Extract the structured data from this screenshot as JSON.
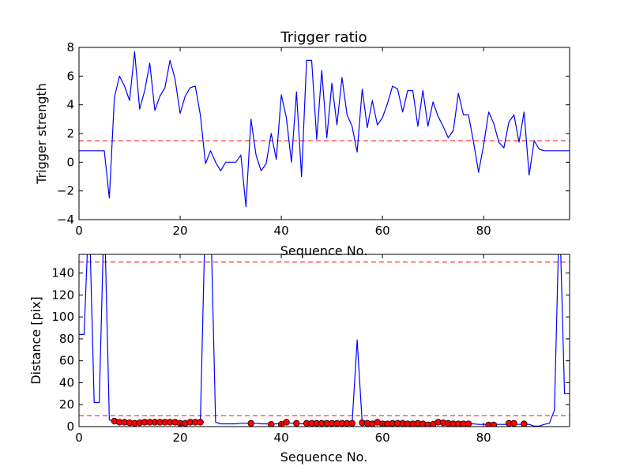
{
  "chart_data": [
    {
      "type": "line",
      "title": "Trigger ratio",
      "xlabel": "Sequence No.",
      "ylabel": "Trigger strength",
      "xlim": [
        0,
        97
      ],
      "ylim": [
        -4,
        8
      ],
      "xticks": [
        0,
        20,
        40,
        60,
        80
      ],
      "yticks": [
        -4,
        -2,
        0,
        2,
        4,
        6,
        8
      ],
      "xtick_labels": [
        "0",
        "20",
        "40",
        "60",
        "80"
      ],
      "ytick_labels": [
        "−4",
        "−2",
        "0",
        "2",
        "4",
        "6",
        "8"
      ],
      "grid": false,
      "threshold": {
        "value": 1.5,
        "color": "#ff0000",
        "style": "dashed"
      },
      "series": [
        {
          "color": "#0000ff",
          "x": [
            0,
            1,
            2,
            3,
            4,
            5,
            6,
            7,
            8,
            9,
            10,
            11,
            12,
            13,
            14,
            15,
            16,
            17,
            18,
            19,
            20,
            21,
            22,
            23,
            24,
            25,
            26,
            27,
            28,
            29,
            30,
            31,
            32,
            33,
            34,
            35,
            36,
            37,
            38,
            39,
            40,
            41,
            42,
            43,
            44,
            45,
            46,
            47,
            48,
            49,
            50,
            51,
            52,
            53,
            54,
            55,
            56,
            57,
            58,
            59,
            60,
            61,
            62,
            63,
            64,
            65,
            66,
            67,
            68,
            69,
            70,
            71,
            72,
            73,
            74,
            75,
            76,
            77,
            78,
            79,
            80,
            81,
            82,
            83,
            84,
            85,
            86,
            87,
            88,
            89,
            90,
            91,
            92,
            93,
            94,
            95,
            96,
            97
          ],
          "y": [
            0.8,
            0.8,
            0.8,
            0.8,
            0.8,
            0.8,
            -2.5,
            4.5,
            6.0,
            5.3,
            4.3,
            7.7,
            3.7,
            5.0,
            6.9,
            3.6,
            4.6,
            5.2,
            7.1,
            5.8,
            3.4,
            4.6,
            5.2,
            5.3,
            3.3,
            -0.1,
            0.8,
            0.0,
            -0.6,
            0.0,
            0.0,
            0.0,
            0.5,
            -3.1,
            3.0,
            0.5,
            -0.6,
            -0.1,
            2.0,
            0.2,
            4.7,
            3.1,
            0.0,
            4.9,
            -1.0,
            7.1,
            7.1,
            1.6,
            6.4,
            1.7,
            5.5,
            2.6,
            5.9,
            3.3,
            2.5,
            0.7,
            5.1,
            2.4,
            4.3,
            2.6,
            3.1,
            4.1,
            5.3,
            5.1,
            3.5,
            5.0,
            5.0,
            2.5,
            5.0,
            2.5,
            4.2,
            3.2,
            2.5,
            1.7,
            2.2,
            4.8,
            3.3,
            3.3,
            1.4,
            -0.7,
            1.2,
            3.5,
            2.7,
            1.4,
            1.0,
            2.8,
            3.3,
            1.4,
            3.5,
            -0.9,
            1.5,
            0.9,
            0.8,
            0.8,
            0.8,
            0.8,
            0.8,
            0.8
          ]
        }
      ]
    },
    {
      "type": "line",
      "title": "",
      "xlabel": "Sequence No.",
      "ylabel": "Distance [pix]",
      "xlim": [
        0,
        97
      ],
      "ylim": [
        0,
        157
      ],
      "xticks": [
        0,
        20,
        40,
        60,
        80
      ],
      "yticks": [
        0,
        20,
        40,
        60,
        80,
        100,
        120,
        140
      ],
      "xtick_labels": [
        "0",
        "20",
        "40",
        "60",
        "80"
      ],
      "ytick_labels": [
        "0",
        "20",
        "40",
        "60",
        "80",
        "100",
        "120",
        "140"
      ],
      "grid": false,
      "thresholds": [
        {
          "value": 150,
          "color": "#ff0000",
          "style": "dashed"
        },
        {
          "value": 10,
          "color": "#ff0000",
          "style": "dashed"
        }
      ],
      "series": [
        {
          "color": "#0000ff",
          "x": [
            0,
            1,
            2,
            3,
            4,
            5,
            6,
            7,
            8,
            9,
            10,
            11,
            12,
            13,
            14,
            15,
            16,
            17,
            18,
            19,
            20,
            21,
            22,
            23,
            24,
            25,
            26,
            27,
            28,
            29,
            30,
            31,
            32,
            33,
            34,
            35,
            36,
            37,
            38,
            39,
            40,
            41,
            42,
            43,
            44,
            45,
            46,
            47,
            48,
            49,
            50,
            51,
            52,
            53,
            54,
            55,
            56,
            57,
            58,
            59,
            60,
            61,
            62,
            63,
            64,
            65,
            66,
            67,
            68,
            69,
            70,
            71,
            72,
            73,
            74,
            75,
            76,
            77,
            78,
            79,
            80,
            81,
            82,
            83,
            84,
            85,
            86,
            87,
            88,
            89,
            90,
            91,
            92,
            93,
            94,
            95,
            96,
            97
          ],
          "y": [
            84,
            84,
            200,
            22,
            22,
            200,
            6,
            5,
            4.5,
            4,
            4,
            3,
            3.5,
            4,
            4,
            4,
            4,
            4,
            4,
            4,
            4,
            3,
            3,
            3.5,
            4,
            200,
            200,
            4,
            2.5,
            2.5,
            2.5,
            2.5,
            3,
            3,
            3,
            3,
            2.5,
            2.5,
            2,
            2.5,
            3,
            3.5,
            3,
            3,
            2.5,
            3,
            3,
            3,
            3,
            3,
            3,
            3,
            3,
            3,
            3,
            79,
            3,
            3,
            3.5,
            3,
            3,
            3,
            3,
            3,
            3,
            3,
            3,
            3,
            2.5,
            2.5,
            2,
            2.5,
            2.5,
            2.5,
            2.5,
            2.5,
            2.5,
            2.5,
            2.5,
            2,
            2,
            2,
            2,
            2,
            2,
            2,
            2,
            2,
            2,
            2,
            0.5,
            0.5,
            2,
            3,
            15,
            200,
            30,
            30
          ]
        }
      ],
      "markers": {
        "color": "#ff0000",
        "x": [
          7,
          8,
          9,
          10,
          11,
          12,
          13,
          14,
          15,
          16,
          17,
          18,
          19,
          20,
          21,
          22,
          23,
          24,
          34,
          38,
          40,
          41,
          43,
          45,
          46,
          47,
          48,
          49,
          50,
          51,
          52,
          53,
          54,
          56,
          57,
          58,
          59,
          60,
          61,
          62,
          63,
          64,
          65,
          66,
          67,
          68,
          69,
          70,
          71,
          72,
          73,
          74,
          75,
          76,
          77,
          81,
          82,
          85,
          86,
          88
        ],
        "y": [
          5,
          4,
          4,
          3.5,
          3,
          3.5,
          4,
          4,
          4,
          4,
          4,
          4,
          4,
          3,
          3,
          4,
          4,
          4,
          3,
          2,
          2,
          4,
          3,
          3,
          3,
          3,
          3,
          3,
          3,
          3,
          3,
          3,
          3,
          3.5,
          3,
          2.5,
          4,
          2.5,
          2.5,
          3,
          3,
          3,
          2.5,
          2.5,
          3,
          2.5,
          1.5,
          2,
          4,
          3.5,
          3,
          2.5,
          2.5,
          2.5,
          2.5,
          1.5,
          1.5,
          3,
          3,
          2.5
        ]
      }
    }
  ]
}
